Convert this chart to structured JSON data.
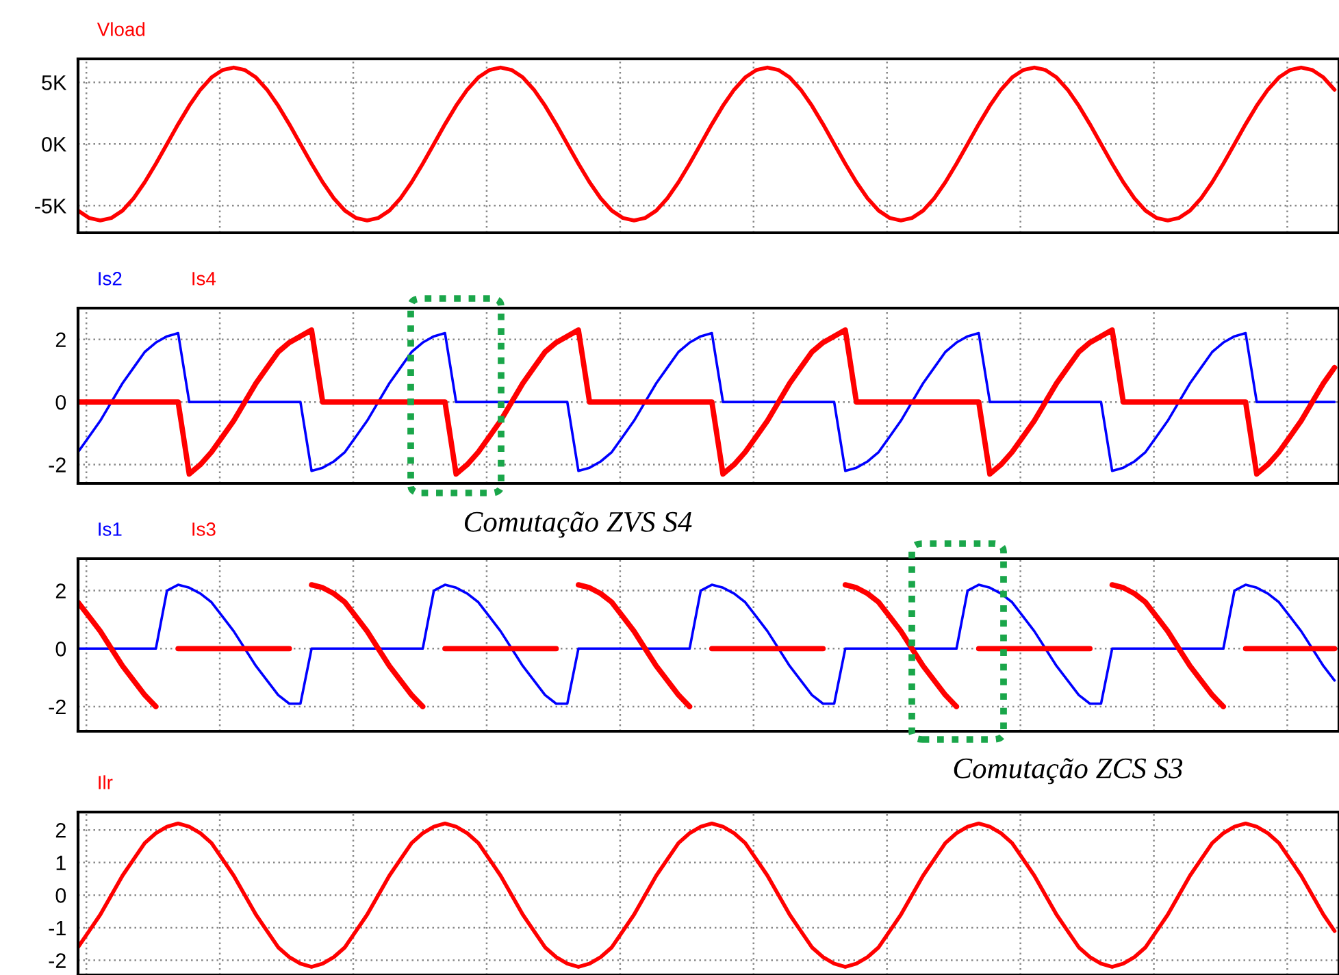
{
  "chart_data": [
    {
      "type": "line",
      "categories": [
        null,
        null,
        null,
        null,
        null,
        null,
        null,
        null,
        null,
        null,
        null,
        null,
        null,
        null,
        null,
        null,
        null,
        null,
        null,
        null,
        null,
        null,
        null,
        null,
        null,
        null,
        null,
        null,
        null,
        null,
        null,
        null,
        null,
        null,
        null,
        null,
        null,
        null,
        null,
        null,
        null,
        null,
        null,
        null,
        null,
        null,
        null,
        null,
        null,
        null,
        null,
        null,
        null,
        null,
        null,
        null,
        null,
        null,
        null,
        null,
        null,
        null,
        null,
        null,
        null,
        null,
        null,
        null,
        null,
        null,
        null,
        null,
        null,
        null,
        null,
        null,
        null,
        null,
        null,
        null,
        null,
        null,
        null,
        null,
        null,
        null,
        null,
        null,
        null,
        null,
        null,
        null,
        null,
        null,
        null,
        null,
        null,
        null,
        null,
        null,
        null,
        null,
        null,
        null,
        null,
        null,
        null,
        null,
        null,
        null,
        null,
        null,
        null,
        null
      ],
      "ylim": [
        -7200,
        6900
      ],
      "yticks": [
        {
          "value": 5000,
          "label": "5K"
        },
        {
          "value": 0,
          "label": "0K"
        },
        {
          "value": -5000,
          "label": "-5K"
        }
      ],
      "grid": true,
      "legend": "top left",
      "tick_labels": "y",
      "series": [
        {
          "name": "Vload",
          "color": "#ff0000",
          "values": [
            -5400,
            -6000,
            -6200,
            -6000,
            -5400,
            -4400,
            -3100,
            -1600,
            0,
            1600,
            3100,
            4400,
            5400,
            6000,
            6200,
            6000,
            5400,
            4400,
            3100,
            1600,
            0,
            -1600,
            -3100,
            -4400,
            -5400,
            -6000,
            -6200,
            -6000,
            -5400,
            -4400,
            -3100,
            -1600,
            0,
            1600,
            3100,
            4400,
            5400,
            6000,
            6200,
            6000,
            5400,
            4400,
            3100,
            1600,
            0,
            -1600,
            -3100,
            -4400,
            -5400,
            -6000,
            -6200,
            -6000,
            -5400,
            -4400,
            -3100,
            -1600,
            0,
            1600,
            3100,
            4400,
            5400,
            6000,
            6200,
            6000,
            5400,
            4400,
            3100,
            1600,
            0,
            -1600,
            -3100,
            -4400,
            -5400,
            -6000,
            -6200,
            -6000,
            -5400,
            -4400,
            -3100,
            -1600,
            0,
            1600,
            3100,
            4400,
            5400,
            6000,
            6200,
            6000,
            5400,
            4400,
            3100,
            1600,
            0,
            -1600,
            -3100,
            -4400,
            -5400,
            -6000,
            -6200,
            -6000,
            -5400,
            -4400,
            -3100,
            -1600,
            0,
            1600,
            3100,
            4400,
            5400,
            6000,
            6200,
            6000,
            5400,
            4400
          ]
        }
      ]
    },
    {
      "type": "line",
      "categories": [
        null,
        null,
        null,
        null,
        null,
        null,
        null,
        null,
        null,
        null,
        null,
        null,
        null,
        null,
        null,
        null,
        null,
        null,
        null,
        null,
        null,
        null,
        null,
        null,
        null,
        null,
        null,
        null,
        null,
        null,
        null,
        null,
        null,
        null,
        null,
        null,
        null,
        null,
        null,
        null,
        null,
        null,
        null,
        null,
        null,
        null,
        null,
        null,
        null,
        null,
        null,
        null,
        null,
        null,
        null,
        null,
        null,
        null,
        null,
        null,
        null,
        null,
        null,
        null,
        null,
        null,
        null,
        null,
        null,
        null,
        null,
        null,
        null,
        null,
        null,
        null,
        null,
        null,
        null,
        null,
        null,
        null,
        null,
        null,
        null,
        null,
        null,
        null,
        null,
        null,
        null,
        null,
        null,
        null,
        null,
        null,
        null,
        null,
        null,
        null,
        null,
        null,
        null,
        null,
        null,
        null,
        null,
        null,
        null,
        null,
        null,
        null,
        null,
        null
      ],
      "ylim": [
        -2.6,
        3.0
      ],
      "yticks": [
        2,
        0,
        -2
      ],
      "grid": true,
      "legend": "top left",
      "tick_labels": "y",
      "annotations": [
        "Comutação ZVS S4"
      ],
      "series": [
        {
          "name": "Is2",
          "color": "#0000ff",
          "values": [
            -1.6,
            -1.1,
            -0.6,
            0,
            0.6,
            1.1,
            1.6,
            1.9,
            2.1,
            2.2,
            0,
            0,
            0,
            0,
            0,
            0,
            0,
            0,
            0,
            0,
            0,
            -2.2,
            -2.1,
            -1.9,
            -1.6,
            -1.1,
            -0.6,
            0,
            0.6,
            1.1,
            1.6,
            1.9,
            2.1,
            2.2,
            0,
            0,
            0,
            0,
            0,
            0,
            0,
            0,
            0,
            0,
            0,
            -2.2,
            -2.1,
            -1.9,
            -1.6,
            -1.1,
            -0.6,
            0,
            0.6,
            1.1,
            1.6,
            1.9,
            2.1,
            2.2,
            0,
            0,
            0,
            0,
            0,
            0,
            0,
            0,
            0,
            0,
            0,
            -2.2,
            -2.1,
            -1.9,
            -1.6,
            -1.1,
            -0.6,
            0,
            0.6,
            1.1,
            1.6,
            1.9,
            2.1,
            2.2,
            0,
            0,
            0,
            0,
            0,
            0,
            0,
            0,
            0,
            0,
            0,
            -2.2,
            -2.1,
            -1.9,
            -1.6,
            -1.1,
            -0.6,
            0,
            0.6,
            1.1,
            1.6,
            1.9,
            2.1,
            2.2,
            0,
            0,
            0,
            0,
            0,
            0,
            0,
            0
          ]
        },
        {
          "name": "Is4",
          "color": "#ff0000",
          "values": [
            0,
            0,
            0,
            0,
            0,
            0,
            0,
            0,
            0,
            0,
            -2.3,
            -2.0,
            -1.6,
            -1.1,
            -0.6,
            0,
            0.6,
            1.1,
            1.6,
            1.9,
            2.1,
            2.3,
            0,
            0,
            0,
            0,
            0,
            0,
            0,
            0,
            0,
            0,
            0,
            0,
            -2.3,
            -2.0,
            -1.6,
            -1.1,
            -0.6,
            0,
            0.6,
            1.1,
            1.6,
            1.9,
            2.1,
            2.3,
            0,
            0,
            0,
            0,
            0,
            0,
            0,
            0,
            0,
            0,
            0,
            0,
            -2.3,
            -2.0,
            -1.6,
            -1.1,
            -0.6,
            0,
            0.6,
            1.1,
            1.6,
            1.9,
            2.1,
            2.3,
            0,
            0,
            0,
            0,
            0,
            0,
            0,
            0,
            0,
            0,
            0,
            0,
            -2.3,
            -2.0,
            -1.6,
            -1.1,
            -0.6,
            0,
            0.6,
            1.1,
            1.6,
            1.9,
            2.1,
            2.3,
            0,
            0,
            0,
            0,
            0,
            0,
            0,
            0,
            0,
            0,
            0,
            0,
            -2.3,
            -2.0,
            -1.6,
            -1.1,
            -0.6,
            0,
            0.6,
            1.1
          ]
        }
      ]
    },
    {
      "type": "line",
      "categories": [
        null,
        null,
        null,
        null,
        null,
        null,
        null,
        null,
        null,
        null,
        null,
        null,
        null,
        null,
        null,
        null,
        null,
        null,
        null,
        null,
        null,
        null,
        null,
        null,
        null,
        null,
        null,
        null,
        null,
        null,
        null,
        null,
        null,
        null,
        null,
        null,
        null,
        null,
        null,
        null,
        null,
        null,
        null,
        null,
        null,
        null,
        null,
        null,
        null,
        null,
        null,
        null,
        null,
        null,
        null,
        null,
        null,
        null,
        null,
        null,
        null,
        null,
        null,
        null,
        null,
        null,
        null,
        null,
        null,
        null,
        null,
        null,
        null,
        null,
        null,
        null,
        null,
        null,
        null,
        null,
        null,
        null,
        null,
        null,
        null,
        null,
        null,
        null,
        null,
        null,
        null,
        null,
        null,
        null,
        null,
        null,
        null,
        null,
        null,
        null,
        null,
        null,
        null,
        null,
        null,
        null,
        null,
        null,
        null,
        null,
        null,
        null,
        null,
        null
      ],
      "ylim": [
        -2.85,
        3.1
      ],
      "yticks": [
        2,
        0,
        -2
      ],
      "grid": true,
      "legend": "top left",
      "tick_labels": "y",
      "annotations": [
        "Comutação ZCS S3"
      ],
      "series": [
        {
          "name": "Is1",
          "color": "#0000ff",
          "values": [
            0,
            0,
            0,
            0,
            0,
            0,
            0,
            0,
            2.0,
            2.2,
            2.1,
            1.9,
            1.6,
            1.1,
            0.6,
            0,
            -0.6,
            -1.1,
            -1.6,
            -1.9,
            -1.9,
            0,
            0,
            0,
            0,
            0,
            0,
            0,
            0,
            0,
            0,
            0,
            2.0,
            2.2,
            2.1,
            1.9,
            1.6,
            1.1,
            0.6,
            0,
            -0.6,
            -1.1,
            -1.6,
            -1.9,
            -1.9,
            0,
            0,
            0,
            0,
            0,
            0,
            0,
            0,
            0,
            0,
            0,
            2.0,
            2.2,
            2.1,
            1.9,
            1.6,
            1.1,
            0.6,
            0,
            -0.6,
            -1.1,
            -1.6,
            -1.9,
            -1.9,
            0,
            0,
            0,
            0,
            0,
            0,
            0,
            0,
            0,
            0,
            0,
            2.0,
            2.2,
            2.1,
            1.9,
            1.6,
            1.1,
            0.6,
            0,
            -0.6,
            -1.1,
            -1.6,
            -1.9,
            -1.9,
            0,
            0,
            0,
            0,
            0,
            0,
            0,
            0,
            0,
            0,
            0,
            2.0,
            2.2,
            2.1,
            1.9,
            1.6,
            1.1,
            0.6,
            0,
            -0.6,
            -1.1
          ]
        },
        {
          "name": "Is3",
          "color": "#ff0000",
          "values": [
            1.6,
            1.1,
            0.6,
            0,
            -0.6,
            -1.1,
            -1.6,
            -2.0,
            null,
            0,
            0,
            0,
            0,
            0,
            0,
            0,
            0,
            0,
            0,
            0,
            null,
            2.2,
            2.1,
            1.9,
            1.6,
            1.1,
            0.6,
            0,
            -0.6,
            -1.1,
            -1.6,
            -2.0,
            null,
            0,
            0,
            0,
            0,
            0,
            0,
            0,
            0,
            0,
            0,
            0,
            null,
            2.2,
            2.1,
            1.9,
            1.6,
            1.1,
            0.6,
            0,
            -0.6,
            -1.1,
            -1.6,
            -2.0,
            null,
            0,
            0,
            0,
            0,
            0,
            0,
            0,
            0,
            0,
            0,
            0,
            null,
            2.2,
            2.1,
            1.9,
            1.6,
            1.1,
            0.6,
            0,
            -0.6,
            -1.1,
            -1.6,
            -2.0,
            null,
            0,
            0,
            0,
            0,
            0,
            0,
            0,
            0,
            0,
            0,
            0,
            null,
            2.2,
            2.1,
            1.9,
            1.6,
            1.1,
            0.6,
            0,
            -0.6,
            -1.1,
            -1.6,
            -2.0,
            null,
            0,
            0,
            0,
            0,
            0,
            0,
            0,
            0,
            0
          ]
        }
      ]
    },
    {
      "type": "line",
      "categories": [
        null,
        null,
        null,
        null,
        null,
        null,
        null,
        null,
        null,
        null,
        null,
        null,
        null,
        null,
        null,
        null,
        null,
        null,
        null,
        null,
        null,
        null,
        null,
        null,
        null,
        null,
        null,
        null,
        null,
        null,
        null,
        null,
        null,
        null,
        null,
        null,
        null,
        null,
        null,
        null,
        null,
        null,
        null,
        null,
        null,
        null,
        null,
        null,
        null,
        null,
        null,
        null,
        null,
        null,
        null,
        null,
        null,
        null,
        null,
        null,
        null,
        null,
        null,
        null,
        null,
        null,
        null,
        null,
        null,
        null,
        null,
        null,
        null,
        null,
        null,
        null,
        null,
        null,
        null,
        null,
        null,
        null,
        null,
        null,
        null,
        null,
        null,
        null,
        null,
        null,
        null,
        null,
        null,
        null,
        null,
        null,
        null,
        null,
        null,
        null,
        null,
        null,
        null,
        null,
        null,
        null,
        null,
        null,
        null,
        null,
        null,
        null,
        null,
        null
      ],
      "ylim": [
        -2.45,
        2.55
      ],
      "yticks": [
        2,
        1,
        0,
        -1,
        -2
      ],
      "grid": true,
      "legend": "top left",
      "tick_labels": "y",
      "series": [
        {
          "name": "Ilr",
          "color": "#ff0000",
          "values": [
            -1.6,
            -1.1,
            -0.6,
            0,
            0.6,
            1.1,
            1.6,
            1.9,
            2.1,
            2.2,
            2.1,
            1.9,
            1.6,
            1.1,
            0.6,
            0,
            -0.6,
            -1.1,
            -1.6,
            -1.9,
            -2.1,
            -2.2,
            -2.1,
            -1.9,
            -1.6,
            -1.1,
            -0.6,
            0,
            0.6,
            1.1,
            1.6,
            1.9,
            2.1,
            2.2,
            2.1,
            1.9,
            1.6,
            1.1,
            0.6,
            0,
            -0.6,
            -1.1,
            -1.6,
            -1.9,
            -2.1,
            -2.2,
            -2.1,
            -1.9,
            -1.6,
            -1.1,
            -0.6,
            0,
            0.6,
            1.1,
            1.6,
            1.9,
            2.1,
            2.2,
            2.1,
            1.9,
            1.6,
            1.1,
            0.6,
            0,
            -0.6,
            -1.1,
            -1.6,
            -1.9,
            -2.1,
            -2.2,
            -2.1,
            -1.9,
            -1.6,
            -1.1,
            -0.6,
            0,
            0.6,
            1.1,
            1.6,
            1.9,
            2.1,
            2.2,
            2.1,
            1.9,
            1.6,
            1.1,
            0.6,
            0,
            -0.6,
            -1.1,
            -1.6,
            -1.9,
            -2.1,
            -2.2,
            -2.1,
            -1.9,
            -1.6,
            -1.1,
            -0.6,
            0,
            0.6,
            1.1,
            1.6,
            1.9,
            2.1,
            2.2,
            2.1,
            1.9,
            1.6,
            1.1,
            0.6,
            0,
            -0.6,
            -1.1
          ]
        }
      ]
    }
  ]
}
